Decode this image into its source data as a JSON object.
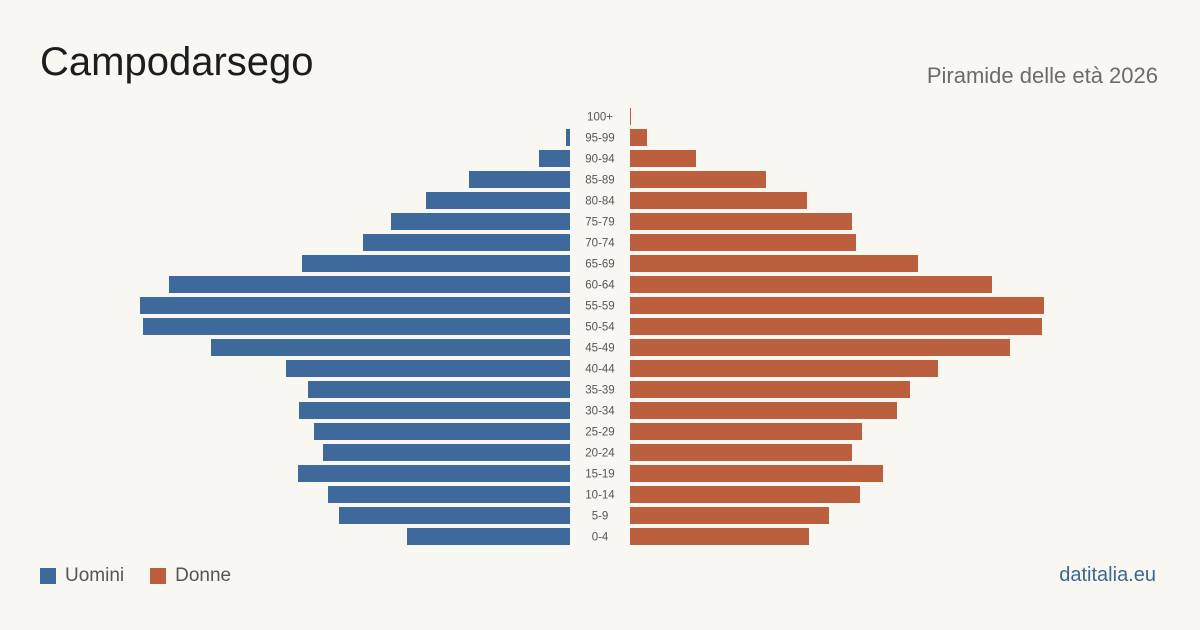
{
  "header": {
    "title": "Campodarsego",
    "subtitle": "Piramide delle età 2026"
  },
  "legend": {
    "men_label": "Uomini",
    "women_label": "Donne"
  },
  "source": "datitalia.eu",
  "colors": {
    "men": "#3d6a9b",
    "women": "#bc5f3f"
  },
  "chart_data": {
    "type": "bar",
    "orientation": "horizontal-pyramid",
    "title": "Campodarsego",
    "subtitle": "Piramide delle età 2026",
    "categories": [
      "100+",
      "95-99",
      "90-94",
      "85-89",
      "80-84",
      "75-79",
      "70-74",
      "65-69",
      "60-64",
      "55-59",
      "50-54",
      "45-49",
      "40-44",
      "35-39",
      "30-34",
      "25-29",
      "20-24",
      "15-19",
      "10-14",
      "5-9",
      "0-4"
    ],
    "series": [
      {
        "name": "Uomini",
        "values": [
          0,
          4,
          31,
          101,
          144,
          179,
          207,
          268,
          401,
          430,
          427,
          359,
          284,
          262,
          271,
          256,
          247,
          272,
          242,
          231,
          163
        ]
      },
      {
        "name": "Donne",
        "values": [
          1,
          17,
          66,
          136,
          177,
          222,
          226,
          288,
          362,
          414,
          412,
          380,
          308,
          280,
          267,
          232,
          222,
          253,
          230,
          199,
          179
        ]
      }
    ],
    "grid": false,
    "legend_position": "bottom-left"
  }
}
